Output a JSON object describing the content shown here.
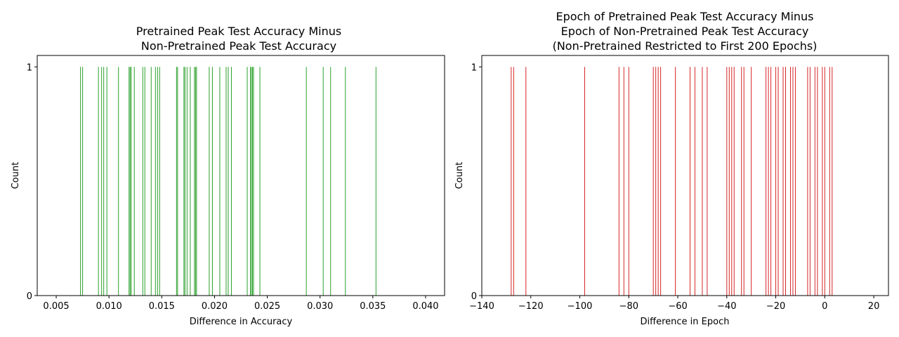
{
  "chart_data": [
    {
      "type": "bar",
      "title_lines": [
        "Pretrained Peak Test Accuracy Minus",
        "Non-Pretrained Peak Test Accuracy"
      ],
      "xlabel": "Difference in Accuracy",
      "ylabel": "Count",
      "xlim": [
        0.0032,
        0.0418
      ],
      "ylim": [
        0,
        1.05
      ],
      "xticks": [
        0.005,
        0.01,
        0.015,
        0.02,
        0.025,
        0.03,
        0.035,
        0.04
      ],
      "xtick_labels": [
        "0.005",
        "0.010",
        "0.015",
        "0.020",
        "0.025",
        "0.030",
        "0.035",
        "0.040"
      ],
      "yticks": [
        0,
        1
      ],
      "ytick_labels": [
        "0",
        "1"
      ],
      "color": "#2ca02c",
      "x": [
        0.0073,
        0.0075,
        0.009,
        0.0093,
        0.0095,
        0.0098,
        0.0109,
        0.0119,
        0.012,
        0.0121,
        0.0124,
        0.0132,
        0.0134,
        0.014,
        0.0144,
        0.0146,
        0.0148,
        0.0164,
        0.0165,
        0.0171,
        0.0172,
        0.0174,
        0.0177,
        0.0181,
        0.0182,
        0.0183,
        0.0195,
        0.0198,
        0.0205,
        0.0211,
        0.0213,
        0.0216,
        0.0231,
        0.0234,
        0.0235,
        0.0236,
        0.0237,
        0.0243,
        0.0287,
        0.0303,
        0.031,
        0.0324,
        0.0353
      ],
      "values": [
        1,
        1,
        1,
        1,
        1,
        1,
        1,
        1,
        1,
        1,
        1,
        1,
        1,
        1,
        1,
        1,
        1,
        1,
        1,
        1,
        1,
        1,
        1,
        1,
        1,
        1,
        1,
        1,
        1,
        1,
        1,
        1,
        1,
        1,
        1,
        1,
        1,
        1,
        1,
        1,
        1,
        1,
        1
      ]
    },
    {
      "type": "bar",
      "title_lines": [
        "Epoch of Pretrained Peak Test Accuracy Minus",
        "Epoch of Non-Pretrained Peak Test Accuracy",
        "(Non-Pretrained Restricted to First 200 Epochs)"
      ],
      "xlabel": "Difference in Epoch",
      "ylabel": "Count",
      "xlim": [
        -140,
        26
      ],
      "ylim": [
        0,
        1.05
      ],
      "xticks": [
        -140,
        -120,
        -100,
        -80,
        -60,
        -40,
        -20,
        0,
        20
      ],
      "xtick_labels": [
        "−140",
        "−120",
        "−100",
        "−80",
        "−60",
        "−40",
        "−20",
        "0",
        "20"
      ],
      "yticks": [
        0,
        1
      ],
      "ytick_labels": [
        "0",
        "1"
      ],
      "color": "#d62728",
      "x": [
        -128,
        -127,
        -122,
        -98,
        -84,
        -82,
        -80,
        -70,
        -69,
        -68,
        -67,
        -61,
        -55,
        -53,
        -50,
        -48,
        -40,
        -39,
        -38,
        -37,
        -34,
        -33,
        -30,
        -24,
        -23,
        -22,
        -20,
        -19,
        -17,
        -16,
        -14,
        -13,
        -12,
        -7,
        -6,
        -4,
        -3,
        -1,
        0,
        2,
        3
      ],
      "values": [
        1,
        1,
        1,
        1,
        1,
        1,
        1,
        1,
        1,
        1,
        1,
        1,
        1,
        1,
        1,
        1,
        1,
        1,
        1,
        1,
        1,
        1,
        1,
        1,
        1,
        1,
        1,
        1,
        1,
        1,
        1,
        1,
        1,
        1,
        1,
        1,
        1,
        1,
        1,
        1,
        1
      ]
    }
  ]
}
